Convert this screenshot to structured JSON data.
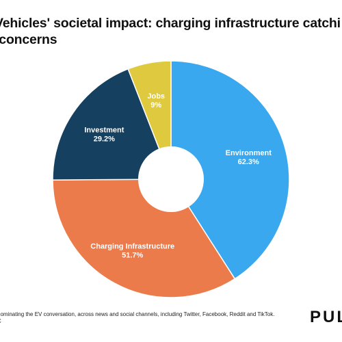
{
  "title_line1": "Vehicles' societal impact: charging infrastructure catchi",
  "title_line2": "-concerns",
  "footnote_line1": "dominating the EV conversation, across news and social channels, including Twitter, Facebook, Reddit and TikTok.",
  "footnote_line2": "C",
  "brand": "PUL",
  "chart_data": {
    "type": "pie",
    "title": "Vehicles' societal impact: charging infrastructure catchi… -concerns",
    "slices": [
      {
        "label": "Environment",
        "value_label": "62.3%",
        "value": 62.3,
        "color": "#3aa8ee"
      },
      {
        "label": "Charging Infrastructure",
        "value_label": "51.7%",
        "value": 51.7,
        "color": "#ec7b4c"
      },
      {
        "label": "Investment",
        "value_label": "29.2%",
        "value": 29.2,
        "color": "#15405f"
      },
      {
        "label": "Jobs",
        "value_label": "9%",
        "value": 9,
        "color": "#dfca3f"
      }
    ],
    "donut": true,
    "start_angle_deg": 0,
    "direction": "clockwise"
  }
}
